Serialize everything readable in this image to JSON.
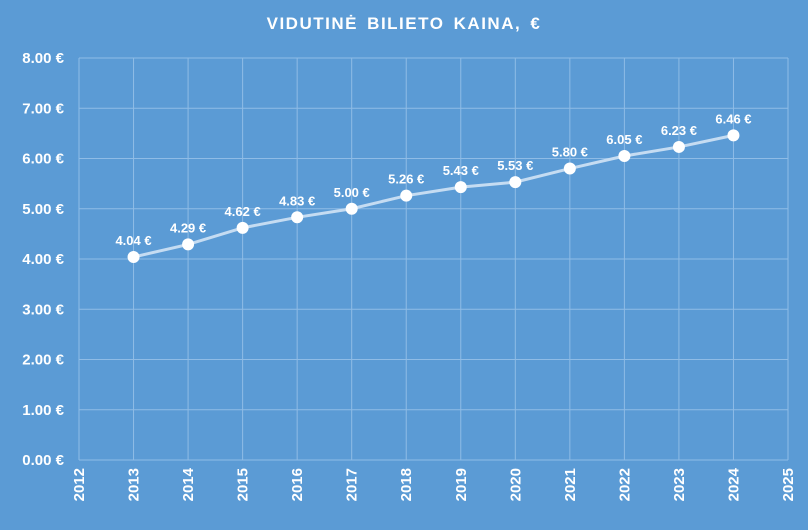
{
  "chart_data": {
    "type": "line",
    "title": "VIDUTINĖ BILIETO KAINA, €",
    "xlabel": "",
    "ylabel": "",
    "xlim": [
      2012,
      2025
    ],
    "ylim": [
      0,
      8
    ],
    "x_ticks": [
      "2012",
      "2013",
      "2014",
      "2015",
      "2016",
      "2017",
      "2018",
      "2019",
      "2020",
      "2021",
      "2022",
      "2023",
      "2024",
      "2025"
    ],
    "y_ticks": [
      "0.00 €",
      "1.00 €",
      "2.00 €",
      "3.00 €",
      "4.00 €",
      "5.00 €",
      "6.00 €",
      "7.00 €",
      "8.00 €"
    ],
    "grid": true,
    "series": [
      {
        "x": [
          2013,
          2014,
          2015,
          2016,
          2017,
          2018,
          2019,
          2020,
          2021,
          2022,
          2023,
          2024
        ],
        "values": [
          4.04,
          4.29,
          4.62,
          4.83,
          5.0,
          5.26,
          5.43,
          5.53,
          5.8,
          6.05,
          6.23,
          6.46
        ],
        "labels": [
          "4.04 €",
          "4.29 €",
          "4.62 €",
          "4.83 €",
          "5.00 €",
          "5.26 €",
          "5.43 €",
          "5.53 €",
          "5.80 €",
          "6.05 €",
          "6.23 €",
          "6.46 €"
        ],
        "color": "#c5dcf2",
        "marker_color": "#ffffff"
      }
    ]
  },
  "colors": {
    "background": "#5b9bd5",
    "gridline": "#8fbce6",
    "text": "#ffffff"
  }
}
